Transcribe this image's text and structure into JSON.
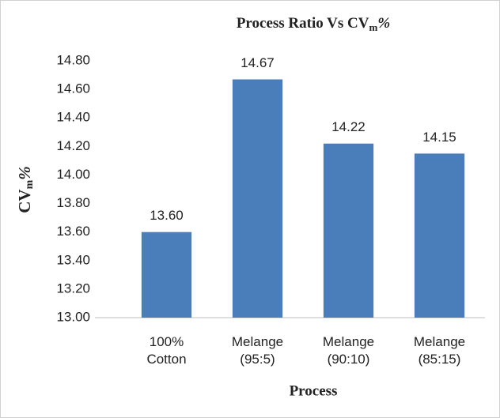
{
  "chart_data": {
    "type": "bar",
    "title": [
      "Process Ratio Vs CV",
      "m",
      "%"
    ],
    "ylabel": [
      "CV",
      "m",
      "%"
    ],
    "xlabel": "Process",
    "categories": [
      "100%\nCotton",
      "Melange\n(95:5)",
      "Melange\n(90:10)",
      "Melange\n(85:15)"
    ],
    "values": [
      13.6,
      14.67,
      14.22,
      14.15
    ],
    "value_labels": [
      "13.60",
      "14.67",
      "14.22",
      "14.15"
    ],
    "color": "#4a7ebb",
    "ylim": [
      13,
      14.8
    ],
    "yticks": [
      {
        "value": 13,
        "label": "13.00"
      },
      {
        "value": 13.2,
        "label": "13.20"
      },
      {
        "value": 13.4,
        "label": "13.40"
      },
      {
        "value": 13.6,
        "label": "13.60"
      },
      {
        "value": 13.8,
        "label": "13.80"
      },
      {
        "value": 14,
        "label": "14.00"
      },
      {
        "value": 14.2,
        "label": "14.20"
      },
      {
        "value": 14.4,
        "label": "14.40"
      },
      {
        "value": 14.6,
        "label": "14.60"
      },
      {
        "value": 14.8,
        "label": "14.80"
      }
    ],
    "grid": false
  }
}
